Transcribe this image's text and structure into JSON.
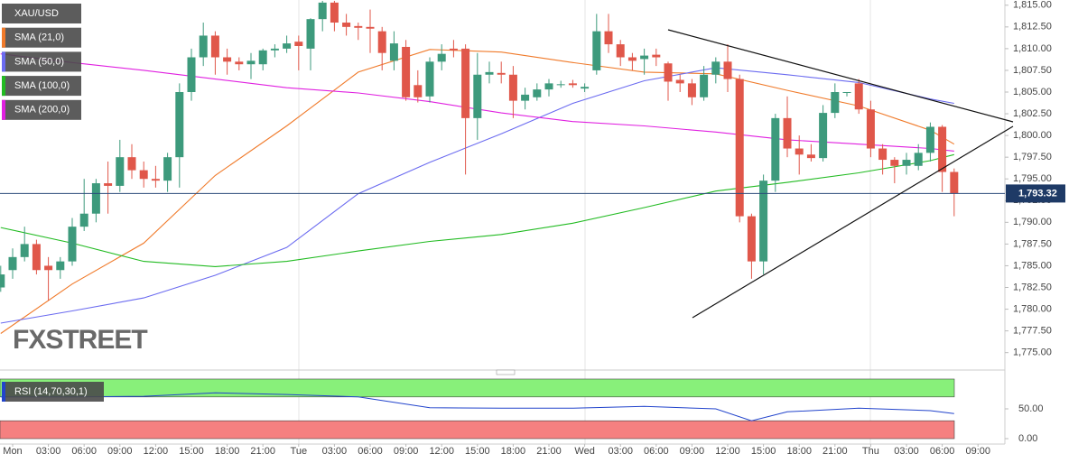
{
  "chart_data": [
    {
      "type": "candlestick",
      "symbol": "XAU/USD",
      "watermark": "FXSTREET",
      "x": [
        -1,
        0,
        1,
        2,
        3,
        4,
        5,
        6,
        7,
        8,
        9,
        10,
        11,
        12,
        13,
        14,
        15,
        16,
        17,
        18,
        19,
        20,
        21,
        22,
        23,
        24,
        25,
        26,
        27,
        28,
        29,
        30,
        31,
        32,
        33,
        34,
        35,
        36,
        37,
        38,
        39,
        40,
        41,
        42,
        43,
        44,
        45,
        46,
        47,
        48,
        49,
        50,
        51,
        52,
        53,
        54,
        55,
        56,
        57,
        58,
        59,
        60,
        61,
        62,
        63,
        64,
        65,
        66,
        67,
        68,
        69,
        70,
        71,
        72,
        73,
        74,
        75,
        76,
        77,
        78,
        79
      ],
      "open": [
        1782.5,
        1784.5,
        1786,
        1787.5,
        1785,
        1784.5,
        1785.5,
        1789.5,
        1791,
        1794.5,
        1794.2,
        1797.5,
        1796,
        1795,
        1794.8,
        1797.5,
        1805,
        1809,
        1811.5,
        1809,
        1808.5,
        1808.2,
        1808.2,
        1809.8,
        1810,
        1810.8,
        1810,
        1813.4,
        1815.3,
        1813,
        1812.6,
        1812.5,
        1812,
        1808.6,
        1810.2,
        1805.8,
        1804.5,
        1808.5,
        1810,
        1810,
        1802,
        1807,
        1807.2,
        1807,
        1804,
        1804.4,
        1805.3,
        1805.8,
        1806,
        1805.4,
        1807.5,
        1812,
        1810.5,
        1809,
        1808.8,
        1809.3,
        1808.3,
        1806.4,
        1806,
        1804.4,
        1807,
        1808.5,
        1806.5,
        1790.7,
        1785.5,
        1794.8,
        1802,
        1798.5,
        1797.8,
        1797.4,
        1802.6,
        1804.9,
        1806,
        1803,
        1798.5,
        1797.2,
        1796.5,
        1796.5,
        1798,
        1801,
        1795.8
      ],
      "high": [
        1785,
        1787,
        1789.5,
        1788,
        1786,
        1786,
        1790.5,
        1795,
        1795,
        1797,
        1799.5,
        1799,
        1797,
        1796.5,
        1798,
        1806,
        1810,
        1813,
        1812,
        1810,
        1809,
        1809.5,
        1810,
        1810.5,
        1811.5,
        1811.5,
        1813.5,
        1815.5,
        1815.5,
        1814,
        1813,
        1814.5,
        1812.5,
        1812,
        1811,
        1807.5,
        1809,
        1810.5,
        1811,
        1810.5,
        1809.5,
        1808.5,
        1808.5,
        1808,
        1805.5,
        1806,
        1806.5,
        1806.3,
        1806.4,
        1806,
        1814,
        1814,
        1811,
        1809.5,
        1810,
        1810,
        1808.5,
        1807,
        1806.5,
        1808,
        1809,
        1810.5,
        1807,
        1791,
        1795.5,
        1802.5,
        1804.5,
        1800,
        1799,
        1803.5,
        1806,
        1805,
        1806.5,
        1804,
        1799,
        1797.5,
        1798,
        1799,
        1801.5,
        1801.2,
        1796.2
      ],
      "low": [
        1782,
        1783.5,
        1785.5,
        1784,
        1781,
        1783.5,
        1785,
        1789,
        1790,
        1791,
        1793.5,
        1795,
        1794,
        1794,
        1793.5,
        1794,
        1804,
        1808,
        1807,
        1807,
        1807.5,
        1806.5,
        1807.5,
        1809,
        1809.5,
        1807.5,
        1807.5,
        1812,
        1812,
        1811.5,
        1811,
        1809.5,
        1807.5,
        1807.5,
        1804,
        1803.8,
        1803.8,
        1807.5,
        1809,
        1795.5,
        1799.5,
        1806,
        1806,
        1802,
        1803,
        1804,
        1804.5,
        1805.5,
        1805.5,
        1805,
        1807,
        1809.5,
        1808,
        1807.5,
        1807,
        1808,
        1804,
        1805,
        1803.5,
        1804,
        1806,
        1805,
        1790,
        1783.5,
        1784,
        1793.5,
        1797.5,
        1795.5,
        1797,
        1797,
        1802,
        1804.5,
        1802.5,
        1797.5,
        1795.5,
        1794.5,
        1795.5,
        1796,
        1797,
        1793.5,
        1790.7
      ],
      "close": [
        1784,
        1786,
        1787.5,
        1784.5,
        1784.5,
        1785.5,
        1789.5,
        1791,
        1794.5,
        1794.2,
        1797.5,
        1796,
        1795,
        1794.8,
        1797.5,
        1805,
        1809,
        1811.5,
        1809,
        1808.5,
        1808.2,
        1808.6,
        1809.8,
        1810,
        1810.6,
        1810.3,
        1813.4,
        1815.3,
        1813,
        1812.5,
        1812.4,
        1812.3,
        1809.5,
        1810.6,
        1804.4,
        1804.4,
        1808.5,
        1809.4,
        1809.8,
        1802,
        1807,
        1807.3,
        1807,
        1804,
        1804.7,
        1805.3,
        1806,
        1805.9,
        1805.8,
        1805.6,
        1812,
        1810.5,
        1809,
        1808.6,
        1809.2,
        1809,
        1806.2,
        1806,
        1804.4,
        1807,
        1808.5,
        1806.5,
        1790.7,
        1785.5,
        1794.8,
        1802,
        1798.5,
        1797.8,
        1797.4,
        1802.6,
        1805,
        1805,
        1803,
        1798.5,
        1797.2,
        1796.5,
        1797.2,
        1798,
        1801,
        1795.8,
        1793.32
      ],
      "up_color": "#3d9a7c",
      "down_color": "#e0574a",
      "series": [
        {
          "name": "SMA (21,0)",
          "color": "#f07a2a",
          "x": [
            -1,
            5,
            11,
            17,
            23,
            29,
            35,
            41,
            47,
            53,
            59,
            65,
            71,
            77,
            79
          ],
          "values": [
            1777.2,
            1782.9,
            1787.6,
            1795.4,
            1801.1,
            1807.3,
            1809.9,
            1809.6,
            1808.4,
            1807.3,
            1807.1,
            1805.2,
            1803.4,
            1800.6,
            1799
          ]
        },
        {
          "name": "SMA (50,0)",
          "color": "#6b6bf0",
          "x": [
            -1,
            5,
            11,
            17,
            23,
            29,
            35,
            41,
            47,
            53,
            59,
            65,
            71,
            77,
            79
          ],
          "values": [
            1778.4,
            1779.8,
            1781.3,
            1783.9,
            1787.1,
            1793.3,
            1796.9,
            1800.2,
            1803.7,
            1806.3,
            1807.8,
            1807,
            1806.1,
            1804.2,
            1803.7
          ]
        },
        {
          "name": "SMA (100,0)",
          "color": "#22bb22",
          "x": [
            -1,
            5,
            11,
            17,
            23,
            29,
            35,
            41,
            47,
            53,
            59,
            65,
            71,
            77,
            79
          ],
          "values": [
            1789.4,
            1787.6,
            1785.5,
            1784.9,
            1785.5,
            1786.7,
            1787.8,
            1788.6,
            1789.9,
            1791.7,
            1793.6,
            1794.6,
            1795.7,
            1797.1,
            1797.8
          ]
        },
        {
          "name": "SMA (200,0)",
          "color": "#e020e0",
          "x": [
            -1,
            5,
            11,
            17,
            23,
            29,
            35,
            41,
            47,
            53,
            59,
            65,
            71,
            77,
            79
          ],
          "values": [
            1809.4,
            1808.4,
            1807.5,
            1806.5,
            1805.5,
            1804.9,
            1803.9,
            1802.6,
            1801.6,
            1801.1,
            1800.4,
            1799.5,
            1799,
            1798.5,
            1798.2
          ]
        }
      ],
      "last_price": {
        "value": 1793.32,
        "label": "1,793.32"
      },
      "xlim": [
        -1.06,
        83.18
      ],
      "xticks": [
        {
          "value": 0,
          "label": "Mon"
        },
        {
          "value": 3,
          "label": "03:00"
        },
        {
          "value": 6,
          "label": "06:00"
        },
        {
          "value": 9,
          "label": "09:00"
        },
        {
          "value": 12,
          "label": "12:00"
        },
        {
          "value": 15,
          "label": "15:00"
        },
        {
          "value": 18,
          "label": "18:00"
        },
        {
          "value": 21,
          "label": "21:00"
        },
        {
          "value": 24,
          "label": "Tue"
        },
        {
          "value": 27,
          "label": "03:00"
        },
        {
          "value": 30,
          "label": "06:00"
        },
        {
          "value": 33,
          "label": "09:00"
        },
        {
          "value": 36,
          "label": "12:00"
        },
        {
          "value": 39,
          "label": "15:00"
        },
        {
          "value": 42,
          "label": "18:00"
        },
        {
          "value": 45,
          "label": "21:00"
        },
        {
          "value": 48,
          "label": "Wed"
        },
        {
          "value": 51,
          "label": "03:00"
        },
        {
          "value": 54,
          "label": "06:00"
        },
        {
          "value": 57,
          "label": "09:00"
        },
        {
          "value": 60,
          "label": "12:00"
        },
        {
          "value": 63,
          "label": "15:00"
        },
        {
          "value": 66,
          "label": "18:00"
        },
        {
          "value": 69,
          "label": "21:00"
        },
        {
          "value": 72,
          "label": "Thu"
        },
        {
          "value": 75,
          "label": "03:00"
        },
        {
          "value": 78,
          "label": "06:00"
        },
        {
          "value": 81,
          "label": "09:00"
        }
      ],
      "ylim": [
        1773.2,
        1815.6
      ],
      "yticks": [
        {
          "value": 1775,
          "label": "1,775.00"
        },
        {
          "value": 1777.5,
          "label": "1,777.50"
        },
        {
          "value": 1780,
          "label": "1,780.00"
        },
        {
          "value": 1782.5,
          "label": "1,782.50"
        },
        {
          "value": 1785,
          "label": "1,785.00"
        },
        {
          "value": 1787.5,
          "label": "1,787.50"
        },
        {
          "value": 1790,
          "label": "1,790.00"
        },
        {
          "value": 1792.5,
          "label": "1,792.50"
        },
        {
          "value": 1795,
          "label": "1,795.00"
        },
        {
          "value": 1797.5,
          "label": "1,797.50"
        },
        {
          "value": 1800,
          "label": "1,800.00"
        },
        {
          "value": 1802.5,
          "label": "1,802.50"
        },
        {
          "value": 1805,
          "label": "1,805.00"
        },
        {
          "value": 1807.5,
          "label": "1,807.50"
        },
        {
          "value": 1810,
          "label": "1,810.00"
        },
        {
          "value": 1812.5,
          "label": "1,812.50"
        },
        {
          "value": 1815,
          "label": "1,815.00"
        }
      ]
    },
    {
      "type": "line",
      "series": [
        {
          "name": "RSI (14,70,30,1)",
          "color": "#2244cc",
          "x": [
            -1,
            5,
            11,
            17,
            23,
            29,
            35,
            41,
            47,
            53,
            59,
            62,
            65,
            71,
            77,
            79
          ],
          "values": [
            70,
            70,
            71,
            77,
            74,
            70,
            52,
            51,
            51,
            54,
            50,
            30,
            45,
            51,
            47,
            42
          ]
        }
      ],
      "bands": [
        {
          "from": 70,
          "to": 100,
          "color": "#88f07a"
        },
        {
          "from": 0,
          "to": 30,
          "color": "#f58080"
        }
      ],
      "ylim": [
        0,
        103
      ],
      "yticks": [
        {
          "value": 0,
          "label": "0.00"
        },
        {
          "value": 50,
          "label": "50.00"
        }
      ]
    }
  ]
}
